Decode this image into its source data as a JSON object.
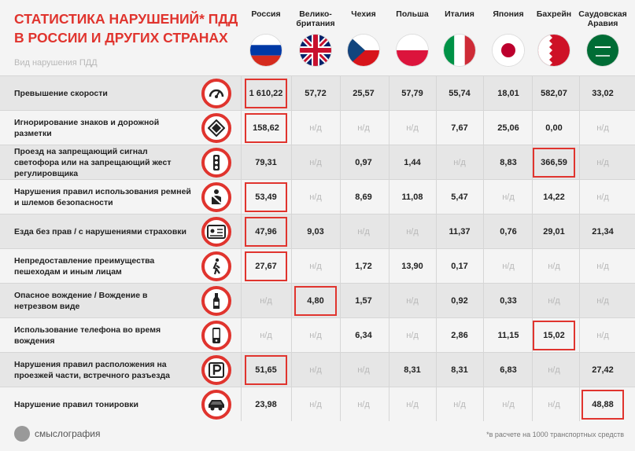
{
  "title": "СТАТИСТИКА НАРУШЕНИЙ* ПДД В РОССИИ И ДРУГИХ СТРАНАХ",
  "subtitle": "Вид нарушения ПДД",
  "countries": [
    "Россия",
    "Велико-британия",
    "Чехия",
    "Польша",
    "Италия",
    "Япония",
    "Бахрейн",
    "Саудовская Аравия"
  ],
  "rows": [
    {
      "label": "Превышение скорости",
      "icon": "speedometer-icon",
      "values": [
        "1 610,22",
        "57,72",
        "25,57",
        "57,79",
        "55,74",
        "18,01",
        "582,07",
        "33,02"
      ],
      "highlight": 0
    },
    {
      "label": "Игнорирование знаков и дорожной разметки",
      "icon": "road-sign-icon",
      "values": [
        "158,62",
        "н/д",
        "н/д",
        "н/д",
        "7,67",
        "25,06",
        "0,00",
        "н/д"
      ],
      "highlight": 0
    },
    {
      "label": "Проезд на запрещающий сигнал светофора или на запрещающий жест регулировщика",
      "icon": "traffic-light-icon",
      "values": [
        "79,31",
        "н/д",
        "0,97",
        "1,44",
        "н/д",
        "8,83",
        "366,59",
        "н/д"
      ],
      "highlight": 6
    },
    {
      "label": "Нарушения правил использования ремней и шлемов безопасности",
      "icon": "seatbelt-icon",
      "values": [
        "53,49",
        "н/д",
        "8,69",
        "11,08",
        "5,47",
        "н/д",
        "14,22",
        "н/д"
      ],
      "highlight": 0
    },
    {
      "label": "Езда без прав / с нарушениями страховки",
      "icon": "license-icon",
      "values": [
        "47,96",
        "9,03",
        "н/д",
        "н/д",
        "11,37",
        "0,76",
        "29,01",
        "21,34"
      ],
      "highlight": 0
    },
    {
      "label": "Непредоставление преимущества пешеходам и иным лицам",
      "icon": "pedestrian-icon",
      "values": [
        "27,67",
        "н/д",
        "1,72",
        "13,90",
        "0,17",
        "н/д",
        "н/д",
        "н/д"
      ],
      "highlight": 0
    },
    {
      "label": "Опасное вождение / Вождение в нетрезвом виде",
      "icon": "bottle-icon",
      "values": [
        "н/д",
        "4,80",
        "1,57",
        "н/д",
        "0,92",
        "0,33",
        "н/д",
        "н/д"
      ],
      "highlight": 1
    },
    {
      "label": "Использование телефона во время вождения",
      "icon": "phone-icon",
      "values": [
        "н/д",
        "н/д",
        "6,34",
        "н/д",
        "2,86",
        "11,15",
        "15,02",
        "н/д"
      ],
      "highlight": 6
    },
    {
      "label": "Нарушения правил расположения на проезжей части, встречного разъезда",
      "icon": "parking-icon",
      "values": [
        "51,65",
        "н/д",
        "н/д",
        "8,31",
        "8,31",
        "6,83",
        "н/д",
        "27,42"
      ],
      "highlight": 0
    },
    {
      "label": "Нарушение правил тонировки",
      "icon": "tinted-car-icon",
      "values": [
        "23,98",
        "н/д",
        "н/д",
        "н/д",
        "н/д",
        "н/д",
        "н/д",
        "48,88"
      ],
      "highlight": 7
    }
  ],
  "logo_text": "смыслография",
  "footnote": "*в расчете на 1000 транспортных средств",
  "colors": {
    "accent": "#e0342e",
    "na": "#b8b8b8"
  }
}
